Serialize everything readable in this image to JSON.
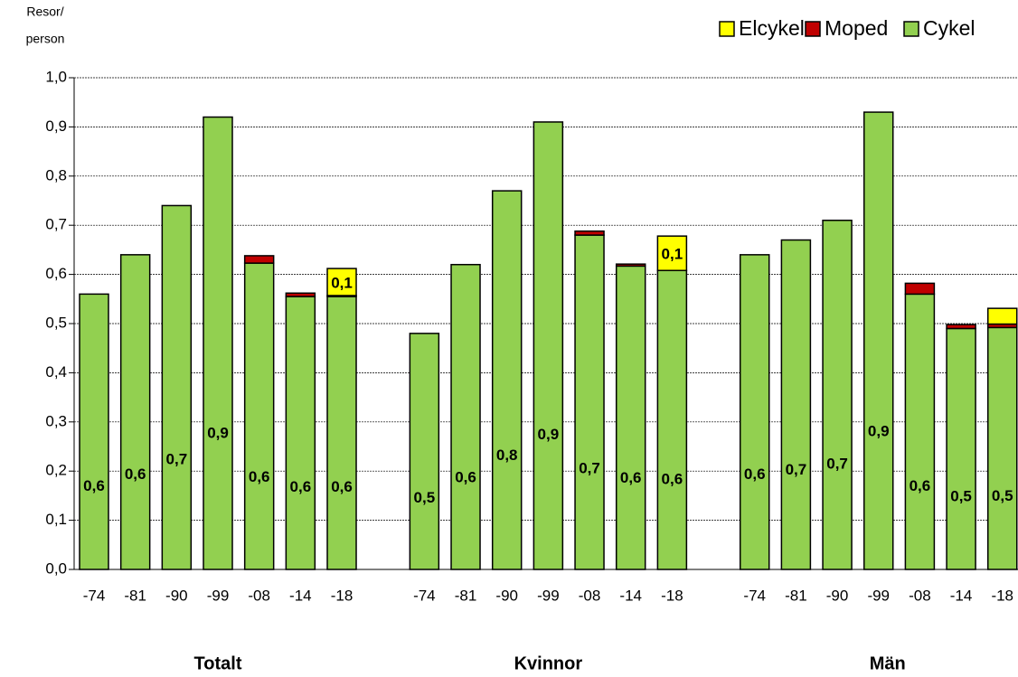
{
  "chart_data": {
    "type": "stacked_bar",
    "y_label": [
      "Resor/",
      "person"
    ],
    "categories": [
      "-74",
      "-81",
      "-90",
      "-99",
      "-08",
      "-14",
      "-18",
      null,
      "-74",
      "-81",
      "-90",
      "-99",
      "-08",
      "-14",
      "-18",
      null,
      "-74",
      "-81",
      "-90",
      "-99",
      "-08",
      "-14",
      "-18"
    ],
    "groups": [
      "Totalt",
      "Kvinnor",
      "Män"
    ],
    "series": [
      {
        "name": "Cykel",
        "color": "#92d050",
        "values": [
          0.56,
          0.64,
          0.74,
          0.92,
          0.623,
          0.555,
          0.555,
          null,
          0.48,
          0.62,
          0.77,
          0.91,
          0.68,
          0.617,
          0.608,
          null,
          0.64,
          0.67,
          0.71,
          0.93,
          0.56,
          0.49,
          0.492
        ],
        "value_labels": [
          "0,6",
          "0,6",
          "0,7",
          "0,9",
          "0,6",
          "0,6",
          "0,6",
          null,
          "0,5",
          "0,6",
          "0,8",
          "0,9",
          "0,7",
          "0,6",
          "0,6",
          null,
          "0,6",
          "0,7",
          "0,7",
          "0,9",
          "0,6",
          "0,5",
          "0,5"
        ]
      },
      {
        "name": "Moped",
        "color": "#c00000",
        "values": [
          null,
          null,
          null,
          null,
          0.015,
          0.007,
          0.002,
          null,
          null,
          null,
          null,
          null,
          0.008,
          0.004,
          null,
          null,
          null,
          null,
          null,
          null,
          0.022,
          0.008,
          0.007
        ]
      },
      {
        "name": "Elcykel",
        "color": "#ffff00",
        "values": [
          null,
          null,
          null,
          null,
          null,
          null,
          0.055,
          null,
          null,
          null,
          null,
          null,
          null,
          null,
          0.07,
          null,
          null,
          null,
          null,
          null,
          null,
          null,
          0.032
        ],
        "value_labels": [
          null,
          null,
          null,
          null,
          null,
          null,
          "0,1",
          null,
          null,
          null,
          null,
          null,
          null,
          null,
          "0,1",
          null,
          null,
          null,
          null,
          null,
          null,
          null,
          null
        ]
      }
    ],
    "ylim": [
      0,
      1
    ],
    "yticks": [
      {
        "value": 0,
        "label": "0,0"
      },
      {
        "value": 0.1,
        "label": "0,1"
      },
      {
        "value": 0.2,
        "label": "0,2"
      },
      {
        "value": 0.3,
        "label": "0,3"
      },
      {
        "value": 0.4,
        "label": "0,4"
      },
      {
        "value": 0.5,
        "label": "0,5"
      },
      {
        "value": 0.6,
        "label": "0,6"
      },
      {
        "value": 0.7,
        "label": "0,7"
      },
      {
        "value": 0.8,
        "label": "0,8"
      },
      {
        "value": 0.9,
        "label": "0,9"
      },
      {
        "value": 1,
        "label": "1,0"
      }
    ],
    "grid": true
  }
}
